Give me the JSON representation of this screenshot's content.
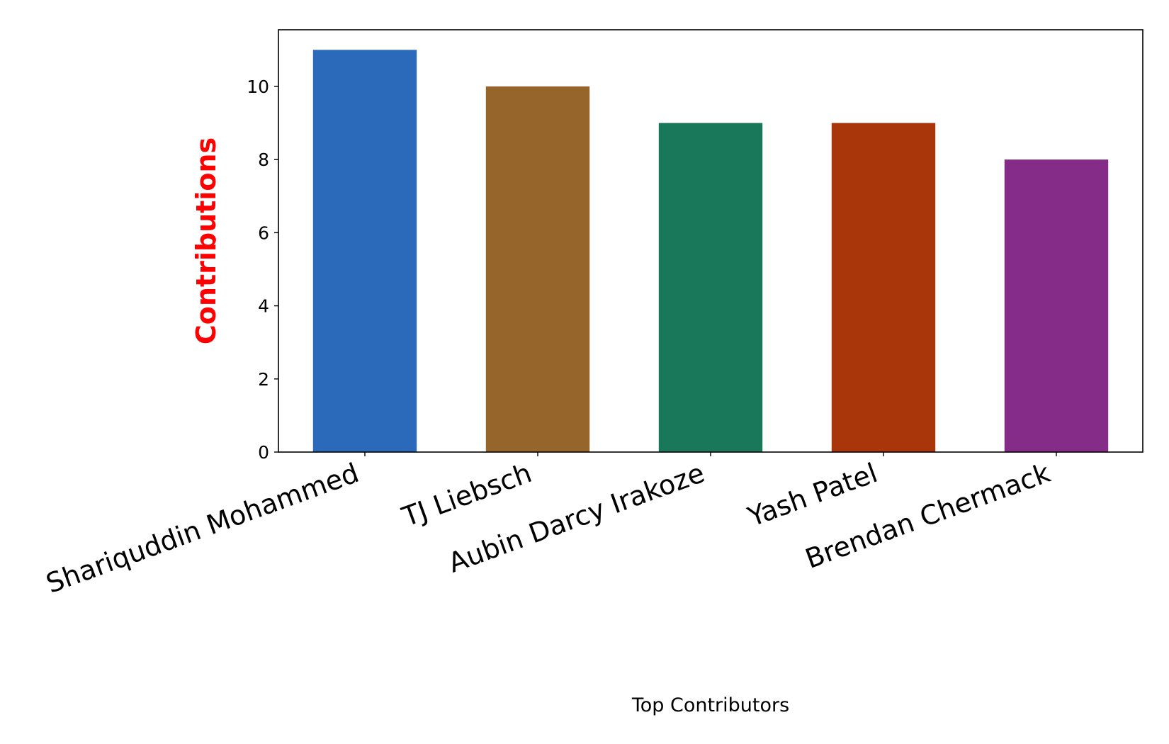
{
  "chart_data": {
    "type": "bar",
    "categories": [
      "Shariquddin Mohammed",
      "TJ Liebsch",
      "Aubin Darcy Irakoze",
      "Yash Patel",
      "Brendan Chermack"
    ],
    "values": [
      11,
      10,
      9,
      9,
      8
    ],
    "colors": [
      "#2b69bb",
      "#95652c",
      "#1a785a",
      "#a8360a",
      "#842c88"
    ],
    "xlabel": "Top Contributors",
    "ylabel": "Contributions",
    "ylabel_color": "#ff0000",
    "ylim": [
      0,
      11.55
    ],
    "yticks": [
      0,
      2,
      4,
      6,
      8,
      10
    ],
    "grid": false,
    "legend": "none"
  }
}
